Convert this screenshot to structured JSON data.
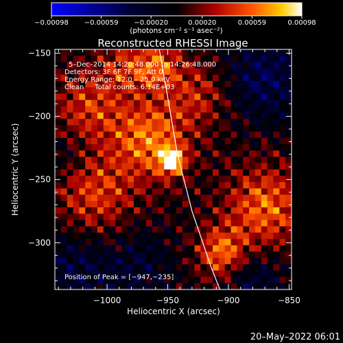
{
  "chart_data": {
    "type": "heatmap",
    "title": "Reconstructed RHESSI Image",
    "xlabel": "Heliocentric X (arcsec)",
    "ylabel": "Heliocentric Y (arcsec)",
    "xlim": [
      -1043,
      -848
    ],
    "ylim": [
      -337,
      -147
    ],
    "x_ticks": [
      -1000,
      -950,
      -900,
      -850
    ],
    "x_tick_labels": [
      "−1000",
      "−950",
      "−900",
      "−850"
    ],
    "y_ticks": [
      -300,
      -250,
      -200,
      -150
    ],
    "y_tick_labels": [
      "−300",
      "−250",
      "−200",
      "−150"
    ],
    "colorbar": {
      "range": [
        -0.00098,
        0.00098
      ],
      "ticks": [
        -0.00098,
        -0.00059,
        -0.0002,
        0.0002,
        0.00059,
        0.00098
      ],
      "tick_labels": [
        "−0.00098",
        "−0.00059",
        "−0.00020",
        "0.00020",
        "0.00059",
        "0.00098"
      ],
      "unit_label": "(photons cm⁻² s⁻¹ asec⁻²)"
    },
    "annotations": [
      "5–Dec–2014 14:20:48.000 to 14:26:48.000",
      "Detectors: 3F 6F 7F 9F, Att 0",
      "Energy Range: 12.0 – 25.0 keV",
      "Clean     Total counts: 6.14E+03"
    ],
    "peak_label": "Position of Peak = [−947,−235]",
    "peak_position": [
      -947,
      -235
    ],
    "limb_line": [
      [
        -957,
        -147
      ],
      [
        -950,
        -185
      ],
      [
        -942,
        -230
      ],
      [
        -930,
        -275
      ],
      [
        -914,
        -320
      ],
      [
        -907,
        -337
      ]
    ],
    "image": {
      "grid_cells": [
        40,
        38
      ],
      "cell_size_arcsec": 5,
      "sources": [
        {
          "x": -947,
          "y": -235,
          "amp": 0.00098,
          "sigma": 7
        },
        {
          "x": -965,
          "y": -218,
          "amp": 0.00062,
          "sigma": 22
        },
        {
          "x": -1010,
          "y": -262,
          "amp": 0.00045,
          "sigma": 22
        },
        {
          "x": -1015,
          "y": -192,
          "amp": 0.00042,
          "sigma": 20
        },
        {
          "x": -870,
          "y": -272,
          "amp": 0.00058,
          "sigma": 22
        },
        {
          "x": -905,
          "y": -308,
          "amp": 0.00062,
          "sigma": 14
        },
        {
          "x": -958,
          "y": -160,
          "amp": 0.00052,
          "sigma": 13
        },
        {
          "x": -985,
          "y": -160,
          "amp": 0.00035,
          "sigma": 14
        },
        {
          "x": -925,
          "y": -182,
          "amp": 0.00035,
          "sigma": 18
        },
        {
          "x": -975,
          "y": -320,
          "amp": -0.00025,
          "sigma": 22
        },
        {
          "x": -1030,
          "y": -320,
          "amp": -0.0003,
          "sigma": 22
        },
        {
          "x": -870,
          "y": -170,
          "amp": -0.0004,
          "sigma": 24
        },
        {
          "x": -880,
          "y": -330,
          "amp": -0.0003,
          "sigma": 18
        },
        {
          "x": -1035,
          "y": -230,
          "amp": -0.00015,
          "sigma": 14
        }
      ],
      "ripple_amplitude": 0.00026,
      "ripple_period_arcsec": 16
    }
  },
  "footer": {
    "timestamp": "20–May–2022 06:01"
  }
}
